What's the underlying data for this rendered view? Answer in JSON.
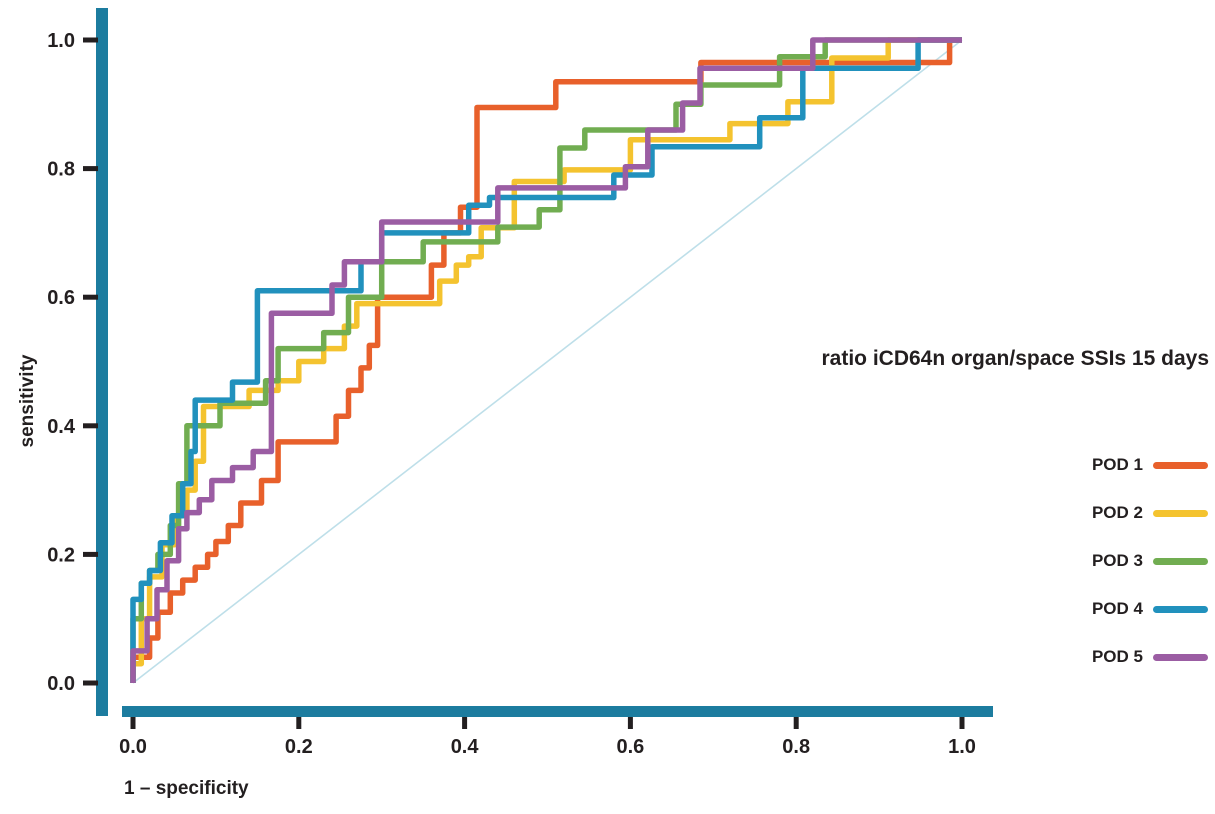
{
  "chart_data": {
    "type": "line",
    "variant": "roc_step_curves",
    "title": "ratio iCD64n organ/space SSIs 15 days",
    "xlabel": "1 – specificity",
    "ylabel": "sensitivity",
    "xlim": [
      0.0,
      1.0
    ],
    "ylim": [
      0.0,
      1.0
    ],
    "grid": false,
    "legend_position": "right-middle",
    "axis_bar_color": "#1C7C9F",
    "tick_color": "#231f20",
    "text_color": "#231f20",
    "xticks": {
      "values": [
        0.0,
        0.2,
        0.4,
        0.6,
        0.8,
        1.0
      ],
      "labels": [
        "0.0",
        "0.2",
        "0.4",
        "0.6",
        "0.8",
        "1.0"
      ]
    },
    "yticks": {
      "values": [
        0.0,
        0.2,
        0.4,
        0.6,
        0.8,
        1.0
      ],
      "labels": [
        "0.0",
        "0.2",
        "0.4",
        "0.6",
        "0.8",
        "1.0"
      ]
    },
    "reference_line": {
      "from": [
        0,
        0
      ],
      "to": [
        1,
        1
      ],
      "color": "#BEDFE9"
    },
    "series": [
      {
        "name": "POD 1",
        "color": "#E8602B",
        "x": [
          0,
          0,
          0.02,
          0.03,
          0.045,
          0.06,
          0.075,
          0.09,
          0.1,
          0.115,
          0.13,
          0.155,
          0.175,
          0.245,
          0.26,
          0.275,
          0.285,
          0.295,
          0.36,
          0.375,
          0.395,
          0.415,
          0.51,
          0.685,
          0.985,
          1.0
        ],
        "y": [
          0,
          0.04,
          0.07,
          0.11,
          0.14,
          0.16,
          0.18,
          0.2,
          0.22,
          0.245,
          0.28,
          0.315,
          0.375,
          0.415,
          0.455,
          0.49,
          0.525,
          0.6,
          0.65,
          0.7,
          0.74,
          0.895,
          0.935,
          0.965,
          1.0,
          1.0
        ]
      },
      {
        "name": "POD 2",
        "color": "#F4C32F",
        "x": [
          0,
          0,
          0.01,
          0.02,
          0.035,
          0.05,
          0.065,
          0.075,
          0.085,
          0.14,
          0.175,
          0.2,
          0.23,
          0.255,
          0.27,
          0.37,
          0.39,
          0.405,
          0.42,
          0.46,
          0.52,
          0.6,
          0.72,
          0.79,
          0.843,
          0.911,
          1.0
        ],
        "y": [
          0,
          0.03,
          0.1,
          0.165,
          0.215,
          0.26,
          0.3,
          0.345,
          0.43,
          0.455,
          0.47,
          0.5,
          0.52,
          0.555,
          0.59,
          0.625,
          0.65,
          0.663,
          0.708,
          0.78,
          0.798,
          0.845,
          0.87,
          0.904,
          0.972,
          1.0,
          1.0
        ]
      },
      {
        "name": "POD 3",
        "color": "#71AD51",
        "x": [
          0,
          0,
          0.01,
          0.02,
          0.03,
          0.045,
          0.055,
          0.065,
          0.105,
          0.16,
          0.175,
          0.23,
          0.26,
          0.3,
          0.35,
          0.44,
          0.49,
          0.515,
          0.545,
          0.655,
          0.685,
          0.78,
          0.835,
          1.0
        ],
        "y": [
          0,
          0.1,
          0.155,
          0.175,
          0.2,
          0.245,
          0.31,
          0.4,
          0.435,
          0.47,
          0.52,
          0.545,
          0.6,
          0.655,
          0.686,
          0.709,
          0.736,
          0.832,
          0.86,
          0.9,
          0.93,
          0.974,
          1.0,
          1.0
        ]
      },
      {
        "name": "POD 4",
        "color": "#2191BD",
        "x": [
          0,
          0,
          0.01,
          0.02,
          0.033,
          0.047,
          0.06,
          0.07,
          0.075,
          0.12,
          0.15,
          0.275,
          0.3,
          0.405,
          0.43,
          0.58,
          0.626,
          0.756,
          0.808,
          0.947,
          1.0
        ],
        "y": [
          0,
          0.13,
          0.155,
          0.175,
          0.218,
          0.26,
          0.31,
          0.36,
          0.44,
          0.468,
          0.61,
          0.655,
          0.7,
          0.743,
          0.755,
          0.79,
          0.834,
          0.879,
          0.956,
          1.0,
          1.0
        ]
      },
      {
        "name": "POD 5",
        "color": "#9B5DA3",
        "x": [
          0,
          0,
          0.017,
          0.029,
          0.041,
          0.055,
          0.065,
          0.08,
          0.095,
          0.12,
          0.145,
          0.167,
          0.24,
          0.255,
          0.3,
          0.44,
          0.594,
          0.621,
          0.663,
          0.684,
          0.82,
          1.0
        ],
        "y": [
          0,
          0.05,
          0.1,
          0.145,
          0.19,
          0.24,
          0.265,
          0.285,
          0.315,
          0.335,
          0.36,
          0.575,
          0.619,
          0.655,
          0.717,
          0.77,
          0.803,
          0.86,
          0.902,
          0.956,
          1.0,
          1.0
        ]
      }
    ]
  }
}
